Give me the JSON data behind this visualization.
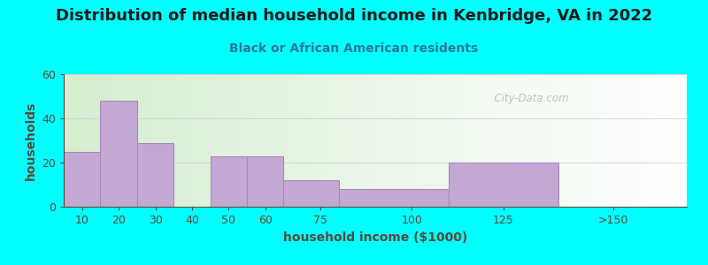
{
  "title": "Distribution of median household income in Kenbridge, VA in 2022",
  "subtitle": "Black or African American residents",
  "xlabel": "household income ($1000)",
  "ylabel": "households",
  "background_color": "#00FFFF",
  "bar_color": "#C4A8D4",
  "bar_edge_color": "#A888C0",
  "lefts": [
    5,
    15,
    25,
    35,
    45,
    55,
    65,
    80,
    110,
    140
  ],
  "widths": [
    10,
    10,
    10,
    10,
    10,
    10,
    15,
    30,
    30,
    30
  ],
  "heights": [
    25,
    48,
    29,
    0,
    23,
    23,
    12,
    8,
    20,
    0
  ],
  "xtick_positions": [
    10,
    20,
    30,
    40,
    50,
    60,
    75,
    100,
    125,
    155
  ],
  "xtick_labels": [
    "10",
    "20",
    "30",
    "40",
    "50",
    "60",
    "75",
    "100",
    "125",
    ">150"
  ],
  "xlim": [
    5,
    175
  ],
  "ylim": [
    0,
    60
  ],
  "yticks": [
    0,
    20,
    40,
    60
  ],
  "title_fontsize": 13,
  "subtitle_fontsize": 10,
  "axis_label_fontsize": 10,
  "tick_fontsize": 9,
  "watermark": "  City-Data.com",
  "title_color": "#1a1a1a",
  "subtitle_color": "#2a7a9a",
  "axis_label_color": "#5a4a3a",
  "tick_color": "#5a4a3a",
  "grid_color": "#cccccc",
  "watermark_color": "#aaaaaa"
}
